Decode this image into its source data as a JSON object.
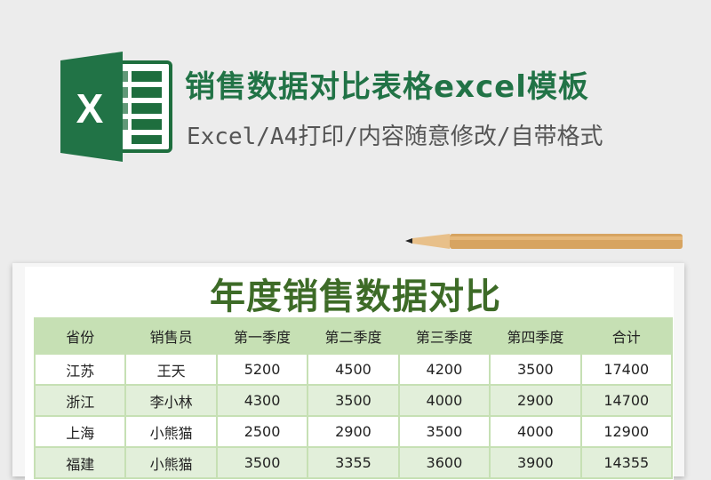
{
  "header": {
    "title": "销售数据对比表格excel模板",
    "subtitle": "Excel/A4打印/内容随意修改/自带格式",
    "logo_icon": "excel-logo-icon",
    "logo_letter": "X"
  },
  "sheet": {
    "title": "年度销售数据对比",
    "columns": [
      "省份",
      "销售员",
      "第一季度",
      "第二季度",
      "第三季度",
      "第四季度",
      "合计"
    ],
    "rows": [
      [
        "江苏",
        "王天",
        "5200",
        "4500",
        "4200",
        "3500",
        "17400"
      ],
      [
        "浙江",
        "李小林",
        "4300",
        "3500",
        "4000",
        "2900",
        "14700"
      ],
      [
        "上海",
        "小熊猫",
        "2500",
        "2900",
        "3500",
        "4000",
        "12900"
      ],
      [
        "福建",
        "小熊猫",
        "3500",
        "3355",
        "3600",
        "3900",
        "14355"
      ]
    ]
  },
  "colors": {
    "brand": "#217346",
    "title": "#3d6b27",
    "header_fill": "#c6e0b4",
    "alt_row": "#e2efda"
  }
}
